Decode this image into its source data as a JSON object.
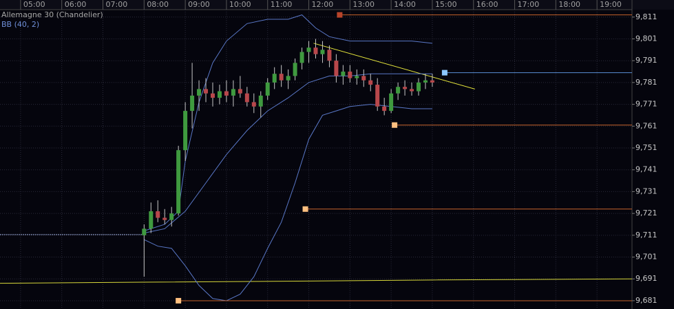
{
  "chart_data": {
    "type": "candlestick",
    "title": "Allemagne 30 (Chandelier)",
    "subtitle": "BB (40, 2)",
    "xlim": [
      "04:30",
      "19:51"
    ],
    "xticks": [
      "05:00",
      "06:00",
      "07:00",
      "08:00",
      "09:00",
      "10:00",
      "11:00",
      "12:00",
      "13:00",
      "14:00",
      "15:00",
      "16:00",
      "17:00",
      "18:00",
      "19:00"
    ],
    "ylim": [
      9677.2,
      9814.4
    ],
    "yticks": [
      {
        "value": 9681,
        "label": "9,681"
      },
      {
        "value": 9691,
        "label": "9,691"
      },
      {
        "value": 9701,
        "label": "9,701"
      },
      {
        "value": 9711,
        "label": "9,711"
      },
      {
        "value": 9721,
        "label": "9,721"
      },
      {
        "value": 9731,
        "label": "9,731"
      },
      {
        "value": 9741,
        "label": "9,741"
      },
      {
        "value": 9751,
        "label": "9,751"
      },
      {
        "value": 9761,
        "label": "9,761"
      },
      {
        "value": 9771,
        "label": "9,771"
      },
      {
        "value": 9781,
        "label": "9,781"
      },
      {
        "value": 9791,
        "label": "9,791"
      },
      {
        "value": 9801,
        "label": "9,801"
      },
      {
        "value": 9811,
        "label": "9,811"
      }
    ],
    "grid": true,
    "up_color": "#3f9a3f",
    "down_color": "#b8474b",
    "wick_color": "#c8c8c8",
    "x": [
      "08:00",
      "08:10",
      "08:20",
      "08:30",
      "08:40",
      "08:50",
      "09:00",
      "09:10",
      "09:20",
      "09:30",
      "09:40",
      "09:50",
      "10:00",
      "10:10",
      "10:20",
      "10:30",
      "10:40",
      "10:50",
      "11:00",
      "11:10",
      "11:20",
      "11:30",
      "11:40",
      "11:50",
      "12:00",
      "12:10",
      "12:20",
      "12:30",
      "12:40",
      "12:50",
      "13:00",
      "13:10",
      "13:20",
      "13:30",
      "13:40",
      "13:50",
      "14:00",
      "14:10",
      "14:20",
      "14:30",
      "14:40",
      "14:50",
      "15:00"
    ],
    "open": [
      9711,
      9714,
      9722,
      9719,
      9718,
      9721,
      9750,
      9768,
      9775,
      9778,
      9776,
      9774,
      9777,
      9775,
      9778,
      9776,
      9772,
      9770,
      9775,
      9781,
      9785,
      9782,
      9784,
      9790,
      9795,
      9797,
      9794,
      9796,
      9791,
      9784,
      9786,
      9783,
      9784,
      9782,
      9780,
      9770,
      9768,
      9776,
      9779,
      9778,
      9777,
      9781,
      9782
    ],
    "high": [
      9716,
      9726,
      9727,
      9723,
      9724,
      9752,
      9772,
      9790,
      9782,
      9783,
      9781,
      9780,
      9782,
      9782,
      9784,
      9779,
      9776,
      9777,
      9783,
      9788,
      9789,
      9787,
      9792,
      9797,
      9800,
      9801,
      9800,
      9798,
      9794,
      9789,
      9789,
      9787,
      9787,
      9785,
      9783,
      9774,
      9778,
      9781,
      9782,
      9781,
      9783,
      9785,
      9785
    ],
    "low": [
      9692,
      9712,
      9717,
      9716,
      9715,
      9720,
      9745,
      9760,
      9768,
      9772,
      9770,
      9771,
      9772,
      9770,
      9774,
      9770,
      9767,
      9765,
      9773,
      9778,
      9779,
      9778,
      9782,
      9787,
      9790,
      9792,
      9790,
      9788,
      9781,
      9780,
      9781,
      9780,
      9779,
      9777,
      9768,
      9766,
      9767,
      9773,
      9775,
      9775,
      9775,
      9778,
      9779
    ],
    "close": [
      9714,
      9722,
      9719,
      9718,
      9721,
      9750,
      9768,
      9775,
      9778,
      9776,
      9774,
      9777,
      9775,
      9778,
      9776,
      9772,
      9770,
      9775,
      9781,
      9785,
      9782,
      9784,
      9790,
      9795,
      9797,
      9794,
      9796,
      9791,
      9784,
      9786,
      9783,
      9784,
      9782,
      9780,
      9770,
      9768,
      9776,
      9779,
      9778,
      9777,
      9781,
      9782,
      9781
    ],
    "reference_line": {
      "x": [
        "04:30",
        "08:00"
      ],
      "value": 9711.3,
      "color": "#9aaad8"
    },
    "series": [
      {
        "name": "upper",
        "color": "#5a78c8",
        "x": [
          "08:00",
          "08:30",
          "08:50",
          "09:00",
          "09:20",
          "09:40",
          "10:00",
          "10:30",
          "11:00",
          "11:30",
          "11:50",
          "12:10",
          "12:30",
          "13:00",
          "13:30",
          "14:00",
          "14:30",
          "15:00"
        ],
        "values": [
          9713,
          9716,
          9722,
          9745,
          9772,
          9790,
          9800,
          9808,
          9810,
          9810,
          9812,
          9806,
          9802,
          9800,
          9800,
          9800,
          9800,
          9799
        ]
      },
      {
        "name": "middle",
        "color": "#5a78c8",
        "x": [
          "08:00",
          "08:30",
          "09:00",
          "09:30",
          "10:00",
          "10:30",
          "11:00",
          "11:30",
          "12:00",
          "12:30",
          "13:00",
          "13:30",
          "14:00",
          "14:30",
          "15:00"
        ],
        "values": [
          9712,
          9714,
          9722,
          9735,
          9748,
          9759,
          9768,
          9774,
          9781,
          9784,
          9784,
          9785,
          9785,
          9785,
          9785
        ]
      },
      {
        "name": "lower",
        "color": "#5a78c8",
        "x": [
          "08:00",
          "08:20",
          "08:40",
          "09:00",
          "09:20",
          "09:40",
          "10:00",
          "10:20",
          "10:40",
          "11:00",
          "11:20",
          "11:40",
          "12:00",
          "12:20",
          "12:40",
          "13:00",
          "13:30",
          "14:00",
          "14:30",
          "15:00"
        ],
        "values": [
          9709,
          9706,
          9705,
          9697,
          9688,
          9682,
          9681,
          9684,
          9692,
          9705,
          9717,
          9735,
          9755,
          9766,
          9768,
          9770,
          9771,
          9770,
          9769,
          9769
        ]
      }
    ],
    "levels": [
      {
        "value": 9812,
        "start": "12:45",
        "color": "#c8642c",
        "marker_color": "#b8442a"
      },
      {
        "value": 9785.5,
        "start": "15:18",
        "color": "#5a90d8",
        "marker_color": "#8cc8ff"
      },
      {
        "value": 9761.5,
        "start": "14:05",
        "color": "#c8642c",
        "marker_color": "#ffc080"
      },
      {
        "value": 9723,
        "start": "11:55",
        "color": "#c8642c",
        "marker_color": "#ffc080"
      },
      {
        "value": 9681,
        "start": "08:50",
        "color": "#c8642c",
        "marker_color": "#ffc080"
      }
    ],
    "trend_lines": [
      {
        "x": [
          "12:07",
          "16:02"
        ],
        "values": [
          9799,
          9778
        ],
        "color": "#e8e83c"
      },
      {
        "x": [
          "04:30",
          "08:00",
          "12:00",
          "15:00",
          "19:51"
        ],
        "values": [
          9689,
          9689.5,
          9690,
          9690.5,
          9691
        ],
        "color": "#d8d83a"
      }
    ]
  }
}
